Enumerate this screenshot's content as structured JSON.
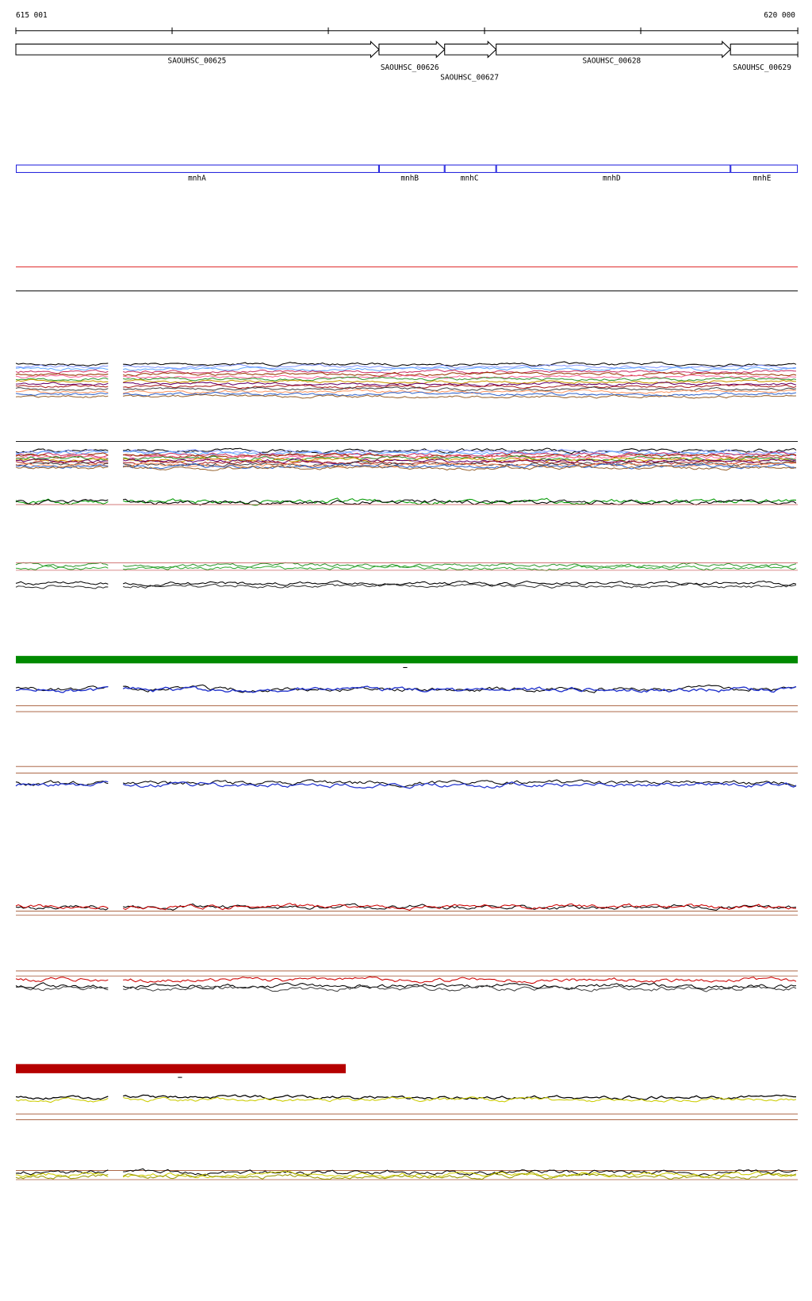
{
  "ruler": {
    "start": "615 001",
    "end": "620 000"
  },
  "genes": [
    {
      "label": "SAOUHSC_00625"
    },
    {
      "label": "SAOUHSC_00626"
    },
    {
      "label": "SAOUHSC_00627"
    },
    {
      "label": "SAOUHSC_00628"
    },
    {
      "label": "SAOUHSC_00629"
    }
  ],
  "features": [
    {
      "label": "mnhA"
    },
    {
      "label": "mnhB"
    },
    {
      "label": "mnhC"
    },
    {
      "label": "mnhD"
    },
    {
      "label": "mnhE"
    }
  ]
}
